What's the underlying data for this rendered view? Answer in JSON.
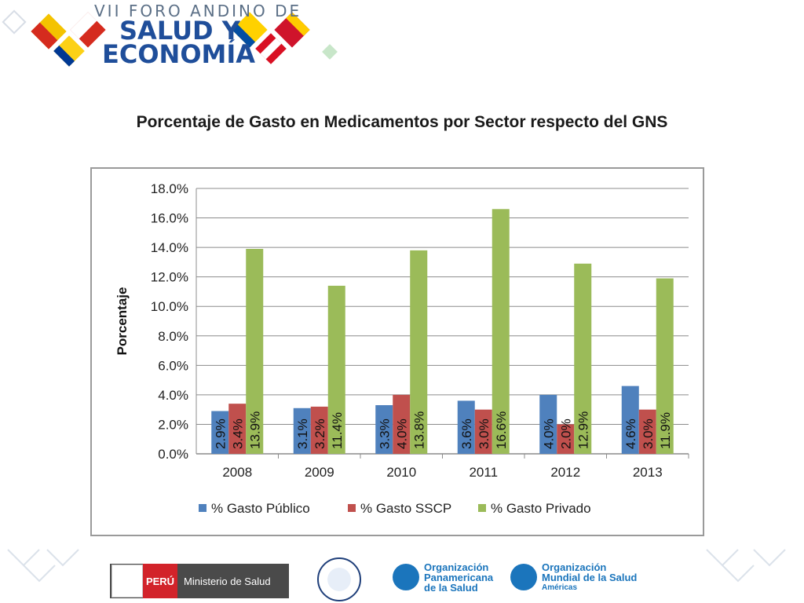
{
  "header": {
    "line1": "VII FORO ANDINO DE",
    "line2": "SALUD Y",
    "line3": "ECONOMÍA"
  },
  "slide_title": "Porcentaje de Gasto en Medicamentos por Sector respecto del GNS",
  "colors": {
    "publico": "#4f81bd",
    "sscp": "#c0504d",
    "privado": "#9bbb59",
    "grid": "#8c8c8c",
    "header_blue": "#1f4e9a"
  },
  "chart_data": {
    "type": "bar",
    "title": "",
    "xlabel": "",
    "ylabel": "Porcentaje",
    "ylim": [
      0,
      18
    ],
    "y_ticks": [
      "0.0%",
      "2.0%",
      "4.0%",
      "6.0%",
      "8.0%",
      "10.0%",
      "12.0%",
      "14.0%",
      "16.0%",
      "18.0%"
    ],
    "categories": [
      "2008",
      "2009",
      "2010",
      "2011",
      "2012",
      "2013"
    ],
    "series": [
      {
        "name": "% Gasto Público",
        "values": [
          2.9,
          3.1,
          3.3,
          3.6,
          4.0,
          4.6
        ],
        "labels": [
          "2.9%",
          "3.1%",
          "3.3%",
          "3.6%",
          "4.0%",
          "4.6%"
        ]
      },
      {
        "name": "% Gasto SSCP",
        "values": [
          3.4,
          3.2,
          4.0,
          3.0,
          2.0,
          3.0
        ],
        "labels": [
          "3.4%",
          "3.2%",
          "4.0%",
          "3.0%",
          "2.0%",
          "3.0%"
        ]
      },
      {
        "name": "% Gasto Privado",
        "values": [
          13.9,
          11.4,
          13.8,
          16.6,
          12.9,
          11.9
        ],
        "labels": [
          "13.9%",
          "11.4%",
          "13.8%",
          "16.6%",
          "12.9%",
          "11.9%"
        ]
      }
    ],
    "grid": true,
    "legend": "bottom"
  },
  "footer": {
    "peru_label": "PERÚ",
    "ministry_label": "Ministerio de Salud",
    "ops_lines": [
      "Organización",
      "Panamericana",
      "de la Salud"
    ],
    "oms_lines": [
      "Organización",
      "Mundial de la Salud",
      "Américas"
    ]
  }
}
